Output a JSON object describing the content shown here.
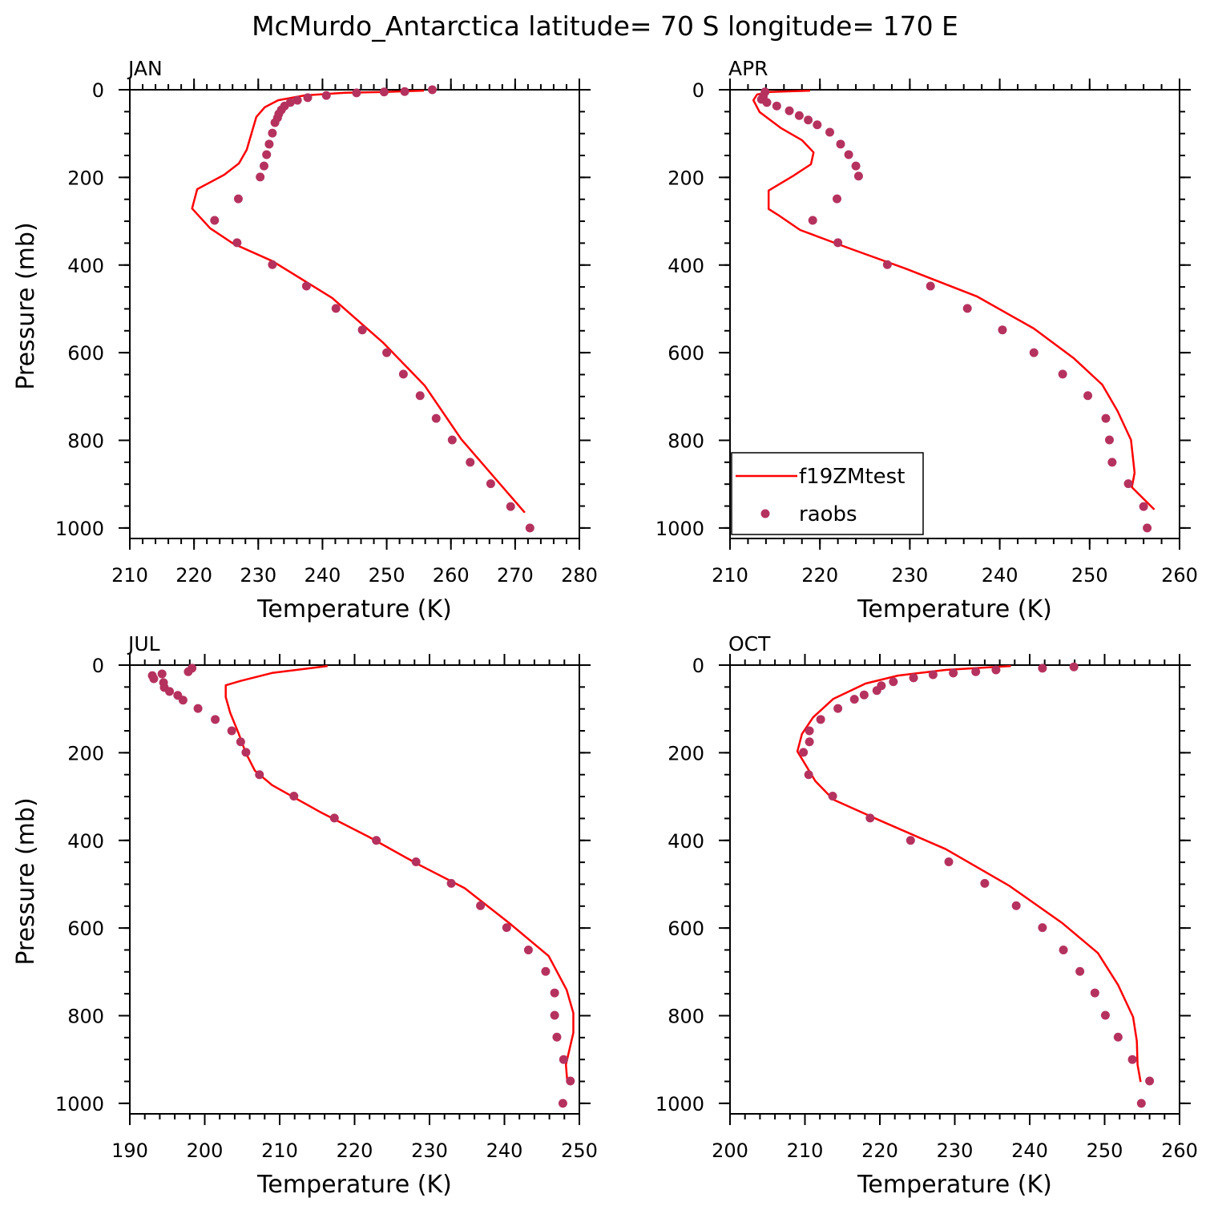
{
  "title": "McMurdo_Antarctica  latitude= 70 S longitude= 170 E",
  "chart_data": [
    {
      "type": "line",
      "title": "JAN",
      "xlabel": "Temperature (K)",
      "ylabel": "Pressure (mb)",
      "xlim": [
        210,
        280
      ],
      "xticks": [
        210,
        220,
        230,
        240,
        250,
        260,
        270,
        280
      ],
      "xminor": 2,
      "ylim": [
        1024,
        0
      ],
      "yticks": [
        0,
        200,
        400,
        600,
        800,
        1000
      ],
      "yminor": 50,
      "series": [
        {
          "name": "f19ZMtest",
          "type": "line",
          "color": "#ff0000",
          "x": [
            271.5,
            261.6,
            255.9,
            249.5,
            241.5,
            232.2,
            226.1,
            222.5,
            219.7,
            220.5,
            224.7,
            227,
            228.2,
            229,
            229.7,
            231,
            233.1,
            237.2,
            243.5,
            249.7,
            255.8
          ],
          "values": [
            965,
            797,
            675,
            578,
            475,
            391,
            351,
            316,
            271,
            227,
            194,
            168,
            137,
            97,
            62,
            40,
            24,
            13,
            7,
            5,
            2
          ]
        },
        {
          "name": "raobs",
          "type": "scatter",
          "color": "#b5325f",
          "x": [
            257.1,
            252.8,
            249.6,
            245.3,
            240.6,
            237.7,
            236.1,
            235,
            234.1,
            233.6,
            233.2,
            233,
            232.6,
            232.2,
            231.7,
            231.3,
            230.9,
            230.3,
            226.9,
            223.2,
            226.7,
            232.2,
            237.5,
            242.1,
            246.2,
            250,
            252.6,
            255.2,
            257.7,
            260.2,
            263,
            266.2,
            269.3,
            272.3
          ],
          "values": [
            0,
            4,
            5,
            7,
            13,
            18,
            24,
            29,
            37,
            46,
            55,
            64,
            75,
            99,
            124,
            148,
            174,
            199,
            249,
            298,
            349,
            399,
            448,
            499,
            548,
            600,
            649,
            698,
            750,
            799,
            850,
            899,
            951,
            1000
          ]
        }
      ]
    },
    {
      "type": "line",
      "title": "APR",
      "xlabel": "Temperature (K)",
      "ylabel": null,
      "legend": "lower left",
      "xlim": [
        210,
        260
      ],
      "xticks": [
        210,
        220,
        230,
        240,
        250,
        260
      ],
      "xminor": 2,
      "ylim": [
        1024,
        0
      ],
      "yticks": [
        0,
        200,
        400,
        600,
        800,
        1000
      ],
      "yminor": 50,
      "series": [
        {
          "name": "f19ZMtest",
          "type": "line",
          "color": "#ff0000",
          "x": [
            257.2,
            254.7,
            255,
            254.6,
            253.1,
            251.4,
            248.2,
            243.8,
            237.5,
            229.5,
            223.3,
            217.8,
            215.3,
            214.3,
            214.3,
            217,
            219,
            219.3,
            218,
            215.7,
            213.3,
            212.6,
            213,
            214.4,
            218.9
          ],
          "values": [
            958,
            907,
            874,
            799,
            733,
            673,
            612,
            545,
            472,
            408,
            362,
            320,
            285,
            272,
            230,
            197,
            170,
            143,
            115,
            88,
            51,
            24,
            11,
            5,
            2
          ]
        },
        {
          "name": "raobs",
          "type": "scatter",
          "color": "#b5325f",
          "x": [
            213.9,
            213.7,
            213.5,
            214.1,
            215.2,
            216.6,
            217.7,
            218.7,
            219.7,
            221.1,
            222.3,
            223.2,
            224,
            224.3,
            221.9,
            219.2,
            222,
            227.5,
            232.3,
            236.4,
            240.3,
            243.8,
            247,
            249.8,
            251.8,
            252.2,
            252.5,
            254.3,
            256,
            256.4
          ],
          "values": [
            5,
            15,
            22,
            29,
            37,
            48,
            59,
            69,
            80,
            97,
            124,
            148,
            174,
            197,
            249,
            298,
            349,
            399,
            448,
            499,
            548,
            600,
            649,
            698,
            750,
            799,
            850,
            899,
            951,
            1000
          ]
        }
      ]
    },
    {
      "type": "line",
      "title": "JUL",
      "xlabel": "Temperature (K)",
      "ylabel": "Pressure (mb)",
      "xlim": [
        190,
        250
      ],
      "xticks": [
        190,
        200,
        210,
        220,
        230,
        240,
        250
      ],
      "xminor": 2,
      "ylim": [
        1024,
        0
      ],
      "yticks": [
        0,
        200,
        400,
        600,
        800,
        1000
      ],
      "yminor": 50,
      "series": [
        {
          "name": "f19ZMtest",
          "type": "line",
          "color": "#ff0000",
          "x": [
            248.4,
            248.2,
            249.2,
            249.2,
            248.3,
            245.9,
            240.6,
            234.7,
            228.3,
            221.9,
            215.5,
            209,
            206.7,
            205.5,
            204.5,
            203.4,
            202.8,
            202.8,
            204.8,
            209,
            216.4
          ],
          "values": [
            951,
            912,
            839,
            794,
            741,
            664,
            588,
            509,
            453,
            392,
            336,
            274,
            241,
            201,
            155,
            109,
            73,
            46,
            36,
            18,
            2
          ]
        },
        {
          "name": "raobs",
          "type": "scatter",
          "color": "#b5325f",
          "x": [
            198.3,
            197.8,
            194.3,
            193,
            193.2,
            194.5,
            194.6,
            195.3,
            196.4,
            197.1,
            199.1,
            201.4,
            203.6,
            204.8,
            205.5,
            207.3,
            211.9,
            217.3,
            222.9,
            228.2,
            232.9,
            236.8,
            240.3,
            243.2,
            245.5,
            246.7,
            246.7,
            247,
            247.9,
            248.8,
            247.8
          ],
          "values": [
            7,
            15,
            20,
            24,
            31,
            40,
            51,
            60,
            69,
            80,
            99,
            124,
            150,
            175,
            199,
            250,
            299,
            349,
            400,
            449,
            498,
            549,
            599,
            650,
            699,
            748,
            799,
            849,
            900,
            949,
            1000
          ]
        }
      ]
    },
    {
      "type": "line",
      "title": "OCT",
      "xlabel": "Temperature (K)",
      "ylabel": null,
      "xlim": [
        200,
        260
      ],
      "xticks": [
        200,
        210,
        220,
        230,
        240,
        250,
        260
      ],
      "xminor": 2,
      "ylim": [
        1024,
        0
      ],
      "yticks": [
        0,
        200,
        400,
        600,
        800,
        1000
      ],
      "yminor": 50,
      "series": [
        {
          "name": "f19ZMtest",
          "type": "line",
          "color": "#ff0000",
          "x": [
            254.8,
            254.4,
            254.3,
            253.8,
            251.8,
            249.1,
            244.3,
            237.3,
            228.8,
            220.2,
            213.8,
            211.4,
            210.1,
            209,
            209.6,
            211.1,
            213.8,
            218.1,
            222.4,
            228.8,
            237.5
          ],
          "values": [
            951,
            912,
            858,
            803,
            730,
            657,
            588,
            504,
            420,
            356,
            307,
            265,
            228,
            197,
            157,
            119,
            77,
            42,
            24,
            11,
            2
          ]
        },
        {
          "name": "raobs",
          "type": "scatter",
          "color": "#b5325f",
          "x": [
            245.9,
            241.7,
            235.5,
            232.8,
            229.8,
            227.1,
            224.5,
            221.8,
            220.2,
            219.6,
            217.9,
            216.6,
            214.4,
            212.1,
            210.6,
            210.6,
            209.8,
            210.5,
            213.7,
            218.7,
            224.1,
            229.2,
            234,
            238.2,
            241.7,
            244.5,
            246.7,
            248.7,
            250.1,
            251.8,
            253.7,
            256,
            254.9
          ],
          "values": [
            4,
            7,
            11,
            15,
            18,
            22,
            29,
            38,
            47,
            58,
            68,
            78,
            99,
            124,
            150,
            175,
            199,
            250,
            299,
            349,
            400,
            449,
            498,
            549,
            599,
            650,
            699,
            748,
            799,
            849,
            900,
            949,
            1000
          ]
        }
      ]
    }
  ]
}
